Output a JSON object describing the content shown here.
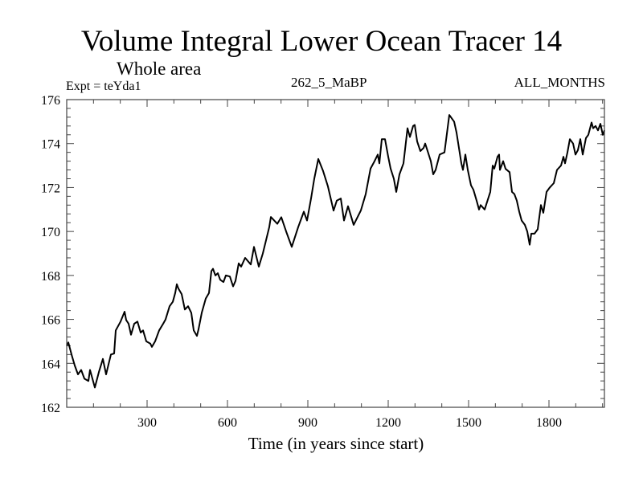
{
  "chart_data": {
    "type": "line",
    "title": "Volume Integral Lower Ocean Tracer 14",
    "subtitle": "Whole area",
    "annotations": {
      "left": "Expt = teYda1",
      "center": "262_5_MaBP",
      "right": "ALL_MONTHS"
    },
    "xlabel": "Time (in years since start)",
    "ylabel": "",
    "xlim": [
      0,
      2007
    ],
    "ylim": [
      162,
      176
    ],
    "x_ticks": [
      300,
      600,
      900,
      1200,
      1500,
      1800
    ],
    "x_tick_labels": [
      "300",
      "600",
      "900",
      "1200",
      "1500",
      "1800"
    ],
    "x_minor_step": 100,
    "y_ticks": [
      162,
      164,
      166,
      168,
      170,
      172,
      174,
      176
    ],
    "y_tick_labels": [
      "162",
      "164",
      "166",
      "168",
      "170",
      "172",
      "174",
      "176"
    ],
    "y_minor_step": 0.4,
    "grid": false,
    "legend": "none",
    "line_color": "#000000",
    "series": [
      {
        "name": "Volume Integral Lower Ocean Tracer 14",
        "x": [
          0,
          6,
          18,
          30,
          42,
          54,
          66,
          81,
          87,
          96,
          105,
          120,
          135,
          147,
          165,
          177,
          183,
          201,
          216,
          222,
          231,
          240,
          252,
          264,
          276,
          285,
          297,
          312,
          318,
          330,
          345,
          360,
          369,
          384,
          396,
          405,
          411,
          417,
          429,
          441,
          453,
          465,
          474,
          486,
          492,
          504,
          519,
          531,
          540,
          546,
          555,
          564,
          573,
          585,
          594,
          609,
          621,
          630,
          642,
          651,
          666,
          687,
          699,
          717,
          732,
          756,
          762,
          786,
          801,
          819,
          840,
          864,
          885,
          897,
          912,
          924,
          939,
          957,
          975,
          996,
          1008,
          1023,
          1035,
          1050,
          1071,
          1098,
          1116,
          1134,
          1149,
          1161,
          1167,
          1176,
          1188,
          1200,
          1209,
          1221,
          1230,
          1242,
          1257,
          1272,
          1281,
          1293,
          1299,
          1308,
          1320,
          1332,
          1338,
          1347,
          1359,
          1368,
          1377,
          1392,
          1410,
          1428,
          1446,
          1455,
          1473,
          1479,
          1488,
          1497,
          1509,
          1518,
          1530,
          1539,
          1545,
          1560,
          1581,
          1590,
          1596,
          1608,
          1614,
          1617,
          1629,
          1638,
          1653,
          1662,
          1671,
          1680,
          1689,
          1698,
          1710,
          1719,
          1728,
          1734,
          1746,
          1758,
          1770,
          1779,
          1791,
          1803,
          1818,
          1830,
          1845,
          1854,
          1860,
          1869,
          1878,
          1890,
          1899,
          1908,
          1917,
          1926,
          1938,
          1947,
          1959,
          1965,
          1974,
          1983,
          1992,
          2001,
          2007
        ],
        "values": [
          164.8,
          164.95,
          164.4,
          163.9,
          163.5,
          163.7,
          163.3,
          163.2,
          163.7,
          163.3,
          162.9,
          163.6,
          164.2,
          163.5,
          164.4,
          164.45,
          165.5,
          165.9,
          166.35,
          165.97,
          165.8,
          165.3,
          165.8,
          165.9,
          165.4,
          165.5,
          165.0,
          164.9,
          164.75,
          165.0,
          165.5,
          165.8,
          166.0,
          166.6,
          166.8,
          167.2,
          167.6,
          167.4,
          167.15,
          166.45,
          166.6,
          166.3,
          165.5,
          165.25,
          165.55,
          166.3,
          166.95,
          167.2,
          168.2,
          168.3,
          168.0,
          168.1,
          167.8,
          167.7,
          168.0,
          167.95,
          167.5,
          167.75,
          168.55,
          168.4,
          168.8,
          168.5,
          169.3,
          168.4,
          169.0,
          170.2,
          170.66,
          170.35,
          170.65,
          170.0,
          169.3,
          170.2,
          170.9,
          170.5,
          171.5,
          172.4,
          173.3,
          172.75,
          172.05,
          170.95,
          171.4,
          171.5,
          170.5,
          171.15,
          170.3,
          170.96,
          171.7,
          172.86,
          173.2,
          173.5,
          173.1,
          174.2,
          174.2,
          173.4,
          172.86,
          172.4,
          171.8,
          172.6,
          173.1,
          174.7,
          174.3,
          174.8,
          174.85,
          174.1,
          173.66,
          173.8,
          174.0,
          173.66,
          173.2,
          172.6,
          172.8,
          173.5,
          173.6,
          175.3,
          175.0,
          174.5,
          173.1,
          172.8,
          173.5,
          172.8,
          172.1,
          171.9,
          171.4,
          171.0,
          171.2,
          171.0,
          171.8,
          173.0,
          172.86,
          173.4,
          173.5,
          172.8,
          173.2,
          172.85,
          172.7,
          171.8,
          171.7,
          171.4,
          170.9,
          170.5,
          170.3,
          170.0,
          169.4,
          169.9,
          169.9,
          170.1,
          171.2,
          170.85,
          171.8,
          172.0,
          172.2,
          172.8,
          173.0,
          173.4,
          173.1,
          173.6,
          174.2,
          174.0,
          173.5,
          173.7,
          174.2,
          173.5,
          174.25,
          174.4,
          174.96,
          174.7,
          174.8,
          174.6,
          174.9,
          174.4,
          174.6
        ]
      }
    ]
  }
}
